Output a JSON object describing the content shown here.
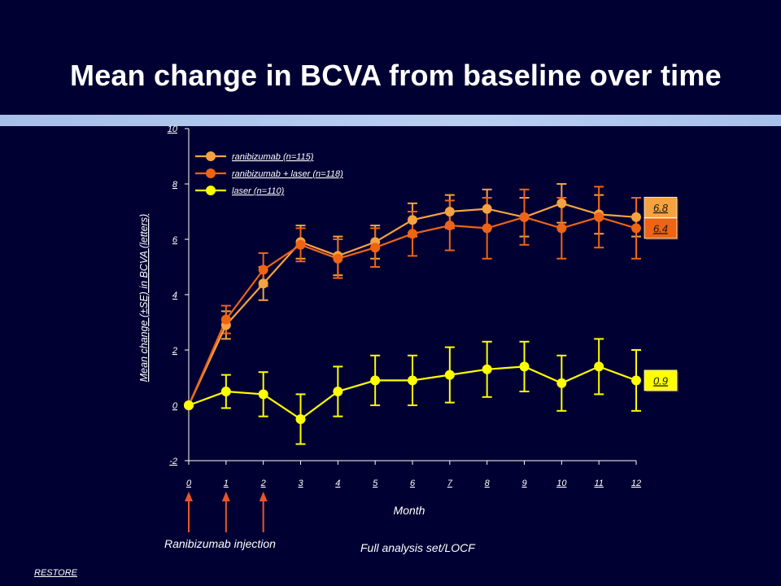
{
  "title": "Mean change in BCVA from baseline over time",
  "colors": {
    "background": "#000033",
    "axis": "#ffffff",
    "injection_arrow": "#e8552a"
  },
  "chart_data": {
    "type": "line",
    "title": "Mean change in BCVA from baseline over time",
    "xlabel": "Month",
    "ylabel": "Mean change (±SE) in BCVA (letters)",
    "x": [
      0,
      1,
      2,
      3,
      4,
      5,
      6,
      7,
      8,
      9,
      10,
      11,
      12
    ],
    "xlim": [
      0,
      12
    ],
    "ylim": [
      -2,
      10
    ],
    "yticks": [
      -2,
      0,
      2,
      4,
      6,
      8,
      10
    ],
    "grid": false,
    "legend_position": "top-left",
    "error_bars": "±SE",
    "series": [
      {
        "name": "ranibizumab (n=115)",
        "color": "#f5a340",
        "values": [
          0,
          2.9,
          4.4,
          5.9,
          5.4,
          5.9,
          6.7,
          7.0,
          7.1,
          6.8,
          7.3,
          6.9,
          6.8
        ],
        "se": [
          0,
          0.5,
          0.6,
          0.6,
          0.7,
          0.6,
          0.6,
          0.6,
          0.7,
          0.7,
          0.7,
          0.7,
          0.7
        ],
        "end_value_label": "6.8"
      },
      {
        "name": "ranibizumab + laser (n=118)",
        "color": "#ee6414",
        "values": [
          0,
          3.1,
          4.9,
          5.8,
          5.3,
          5.7,
          6.2,
          6.5,
          6.4,
          6.8,
          6.4,
          6.8,
          6.4
        ],
        "se": [
          0,
          0.5,
          0.6,
          0.6,
          0.7,
          0.7,
          0.8,
          0.9,
          1.1,
          1.0,
          1.1,
          1.1,
          1.1
        ],
        "end_value_label": "6.4"
      },
      {
        "name": "laser (n=110)",
        "color": "#ffff00",
        "values": [
          0,
          0.5,
          0.4,
          -0.5,
          0.5,
          0.9,
          0.9,
          1.1,
          1.3,
          1.4,
          0.8,
          1.4,
          0.9
        ],
        "se": [
          0,
          0.6,
          0.8,
          0.9,
          0.9,
          0.9,
          0.9,
          1.0,
          1.0,
          0.9,
          1.0,
          1.0,
          1.1
        ],
        "end_value_label": "0.9"
      }
    ],
    "injection_months": [
      0,
      1,
      2
    ],
    "annotations": {
      "injection": "Ranibizumab injection",
      "analysis": "Full analysis set/LOCF"
    }
  },
  "source": "RESTORE"
}
